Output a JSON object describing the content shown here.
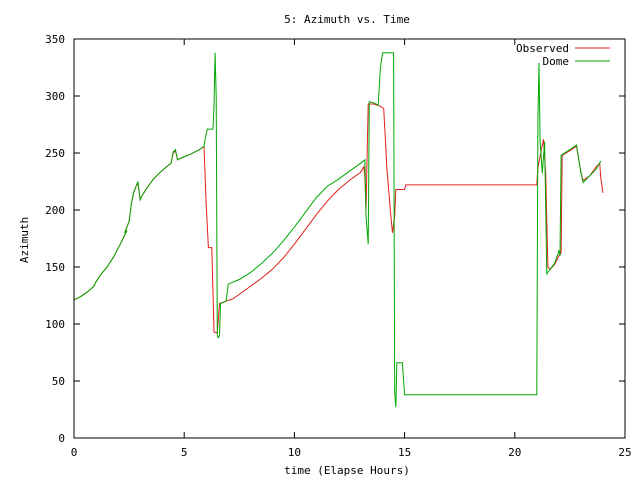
{
  "chart_data": {
    "type": "line",
    "title": "5: Azimuth vs. Time",
    "xlabel": "time (Elapse Hours)",
    "ylabel": "Azimuth",
    "xlim": [
      0,
      25
    ],
    "ylim": [
      0,
      350
    ],
    "xticks": [
      0,
      5,
      10,
      15,
      20,
      25
    ],
    "yticks": [
      0,
      50,
      100,
      150,
      200,
      250,
      300,
      350
    ],
    "grid": false,
    "legend_position": "top-right",
    "series": [
      {
        "name": "Observed",
        "color": "#e0201c",
        "points": [
          [
            0.0,
            121
          ],
          [
            0.3,
            124
          ],
          [
            0.6,
            128
          ],
          [
            0.9,
            133
          ],
          [
            1.0,
            137
          ],
          [
            1.2,
            143
          ],
          [
            1.5,
            150
          ],
          [
            1.8,
            159
          ],
          [
            2.1,
            170
          ],
          [
            2.4,
            182
          ],
          [
            2.3,
            180
          ],
          [
            2.5,
            190
          ],
          [
            2.6,
            205
          ],
          [
            2.7,
            215
          ],
          [
            2.8,
            220
          ],
          [
            2.9,
            224
          ],
          [
            3.0,
            209
          ],
          [
            3.1,
            213
          ],
          [
            3.3,
            219
          ],
          [
            3.6,
            227
          ],
          [
            3.9,
            233
          ],
          [
            4.2,
            238
          ],
          [
            4.4,
            241
          ],
          [
            4.5,
            250
          ],
          [
            4.6,
            252
          ],
          [
            4.7,
            244
          ],
          [
            4.9,
            246
          ],
          [
            5.3,
            249
          ],
          [
            5.7,
            253
          ],
          [
            5.9,
            256
          ],
          [
            6.0,
            205
          ],
          [
            6.1,
            167
          ],
          [
            6.25,
            167
          ],
          [
            6.35,
            93
          ],
          [
            6.5,
            92
          ],
          [
            6.6,
            118
          ],
          [
            6.9,
            120
          ],
          [
            7.2,
            122
          ],
          [
            7.5,
            126
          ],
          [
            8.0,
            133
          ],
          [
            8.5,
            140
          ],
          [
            9.0,
            148
          ],
          [
            9.5,
            158
          ],
          [
            10.0,
            170
          ],
          [
            10.5,
            183
          ],
          [
            11.0,
            196
          ],
          [
            11.5,
            208
          ],
          [
            12.0,
            218
          ],
          [
            12.5,
            226
          ],
          [
            13.0,
            233
          ],
          [
            13.15,
            238
          ],
          [
            13.2,
            228
          ],
          [
            13.25,
            200
          ],
          [
            13.35,
            293
          ],
          [
            13.6,
            293
          ],
          [
            13.9,
            291
          ],
          [
            14.05,
            289
          ],
          [
            14.2,
            235
          ],
          [
            14.35,
            200
          ],
          [
            14.45,
            180
          ],
          [
            14.55,
            195
          ],
          [
            14.6,
            218
          ],
          [
            15.0,
            218
          ],
          [
            15.05,
            222
          ],
          [
            18.0,
            222
          ],
          [
            21.0,
            222
          ],
          [
            21.05,
            237
          ],
          [
            21.2,
            252
          ],
          [
            21.3,
            262
          ],
          [
            21.4,
            232
          ],
          [
            21.5,
            150
          ],
          [
            21.6,
            148
          ],
          [
            21.8,
            152
          ],
          [
            22.0,
            160
          ],
          [
            22.1,
            162
          ],
          [
            22.15,
            248
          ],
          [
            22.5,
            252
          ],
          [
            22.8,
            256
          ],
          [
            23.0,
            233
          ],
          [
            23.1,
            226
          ],
          [
            23.4,
            230
          ],
          [
            23.7,
            238
          ],
          [
            23.85,
            241
          ],
          [
            23.9,
            228
          ],
          [
            24.0,
            215
          ]
        ]
      },
      {
        "name": "Dome",
        "color": "#00a800",
        "points": [
          [
            0.0,
            121
          ],
          [
            0.3,
            124
          ],
          [
            0.6,
            128
          ],
          [
            0.9,
            133
          ],
          [
            1.0,
            137
          ],
          [
            1.2,
            143
          ],
          [
            1.5,
            150
          ],
          [
            1.8,
            159
          ],
          [
            2.1,
            170
          ],
          [
            2.4,
            182
          ],
          [
            2.3,
            180
          ],
          [
            2.5,
            190
          ],
          [
            2.6,
            205
          ],
          [
            2.7,
            215
          ],
          [
            2.8,
            220
          ],
          [
            2.9,
            225
          ],
          [
            3.0,
            209
          ],
          [
            3.1,
            213
          ],
          [
            3.3,
            219
          ],
          [
            3.6,
            227
          ],
          [
            3.9,
            233
          ],
          [
            4.2,
            238
          ],
          [
            4.4,
            241
          ],
          [
            4.5,
            251
          ],
          [
            4.6,
            253
          ],
          [
            4.7,
            244
          ],
          [
            4.9,
            246
          ],
          [
            5.3,
            249
          ],
          [
            5.7,
            253
          ],
          [
            5.9,
            256
          ],
          [
            5.95,
            262
          ],
          [
            6.05,
            271
          ],
          [
            6.3,
            271
          ],
          [
            6.35,
            290
          ],
          [
            6.4,
            338
          ],
          [
            6.45,
            300
          ],
          [
            6.5,
            90
          ],
          [
            6.55,
            88
          ],
          [
            6.6,
            90
          ],
          [
            6.65,
            118
          ],
          [
            6.9,
            120
          ],
          [
            7.0,
            135
          ],
          [
            7.5,
            139
          ],
          [
            8.0,
            145
          ],
          [
            8.5,
            153
          ],
          [
            9.0,
            162
          ],
          [
            9.5,
            173
          ],
          [
            10.0,
            185
          ],
          [
            10.5,
            198
          ],
          [
            11.0,
            211
          ],
          [
            11.5,
            221
          ],
          [
            12.0,
            227
          ],
          [
            12.5,
            234
          ],
          [
            13.0,
            241
          ],
          [
            13.2,
            244
          ],
          [
            13.25,
            195
          ],
          [
            13.35,
            170
          ],
          [
            13.4,
            295
          ],
          [
            13.6,
            294
          ],
          [
            13.8,
            292
          ],
          [
            13.9,
            325
          ],
          [
            14.0,
            338
          ],
          [
            14.5,
            338
          ],
          [
            14.55,
            40
          ],
          [
            14.6,
            27
          ],
          [
            14.65,
            66
          ],
          [
            14.9,
            66
          ],
          [
            15.0,
            38
          ],
          [
            18.0,
            38
          ],
          [
            21.0,
            38
          ],
          [
            21.05,
            280
          ],
          [
            21.1,
            329
          ],
          [
            21.15,
            260
          ],
          [
            21.25,
            232
          ],
          [
            21.35,
            260
          ],
          [
            21.45,
            144
          ],
          [
            21.6,
            148
          ],
          [
            21.8,
            153
          ],
          [
            22.0,
            164
          ],
          [
            22.05,
            160
          ],
          [
            22.1,
            248
          ],
          [
            22.5,
            253
          ],
          [
            22.8,
            257
          ],
          [
            23.0,
            233
          ],
          [
            23.1,
            224
          ],
          [
            23.4,
            230
          ],
          [
            23.7,
            236
          ],
          [
            23.9,
            243
          ]
        ]
      }
    ]
  }
}
